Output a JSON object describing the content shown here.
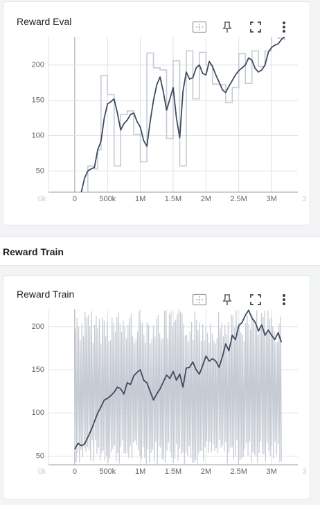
{
  "charts": [
    {
      "title": "Reward Eval"
    },
    {
      "title": "Reward Train"
    }
  ],
  "section": {
    "title": "Reward Train"
  },
  "toolbar_icons": [
    "fit-domain-icon",
    "pin-icon",
    "fullscreen-icon",
    "more-vert-icon"
  ],
  "colors": {
    "smoothed": "#3d4a60",
    "raw": "#c5cad3",
    "grid": "#e0e0e0"
  },
  "chart_data": [
    {
      "type": "line",
      "title": "Reward Eval",
      "xlim": [
        -400000,
        3400000
      ],
      "ylim": [
        20,
        240
      ],
      "x_ticks": [
        "0k",
        "0",
        "500k",
        "1M",
        "1.5M",
        "2M",
        "2.5M",
        "3M",
        "3"
      ],
      "y_ticks": [
        50,
        100,
        150,
        200
      ],
      "grid": true,
      "series": [
        {
          "role": "raw",
          "step": true,
          "x": [
            100000,
            200000,
            300000,
            350000,
            400000,
            500000,
            600000,
            700000,
            800000,
            900000,
            1000000,
            1100000,
            1200000,
            1300000,
            1400000,
            1500000,
            1600000,
            1700000,
            1800000,
            1900000,
            2000000,
            2100000,
            2200000,
            2300000,
            2400000,
            2500000,
            2600000,
            2700000,
            2800000,
            2900000,
            3000000,
            3100000,
            3200000
          ],
          "y": [
            20,
            57,
            53,
            80,
            185,
            158,
            57,
            130,
            135,
            102,
            63,
            217,
            196,
            193,
            96,
            206,
            57,
            220,
            152,
            218,
            200,
            173,
            172,
            147,
            168,
            216,
            174,
            220,
            198,
            220,
            250,
            238,
            235
          ]
        },
        {
          "role": "smoothed",
          "x": [
            100000,
            150000,
            200000,
            250000,
            300000,
            350000,
            400000,
            450000,
            500000,
            550000,
            600000,
            650000,
            700000,
            750000,
            800000,
            850000,
            900000,
            950000,
            1000000,
            1050000,
            1100000,
            1150000,
            1200000,
            1250000,
            1300000,
            1350000,
            1400000,
            1450000,
            1500000,
            1550000,
            1600000,
            1650000,
            1700000,
            1750000,
            1800000,
            1850000,
            1900000,
            1950000,
            2000000,
            2050000,
            2100000,
            2150000,
            2200000,
            2250000,
            2300000,
            2350000,
            2400000,
            2450000,
            2500000,
            2550000,
            2600000,
            2650000,
            2700000,
            2750000,
            2800000,
            2850000,
            2900000,
            2950000,
            3000000,
            3050000,
            3100000,
            3150000,
            3200000
          ],
          "y": [
            20,
            40,
            50,
            53,
            55,
            80,
            92,
            125,
            145,
            148,
            152,
            132,
            108,
            117,
            122,
            130,
            132,
            120,
            112,
            93,
            85,
            120,
            150,
            172,
            183,
            162,
            136,
            152,
            168,
            125,
            97,
            163,
            190,
            180,
            182,
            196,
            200,
            188,
            186,
            205,
            198,
            186,
            176,
            165,
            161,
            170,
            178,
            186,
            192,
            196,
            200,
            210,
            207,
            195,
            190,
            193,
            200,
            218,
            225,
            228,
            230,
            236,
            240
          ]
        }
      ]
    },
    {
      "type": "line",
      "title": "Reward Train",
      "xlim": [
        -400000,
        3400000
      ],
      "ylim": [
        40,
        220
      ],
      "x_ticks": [
        "0k",
        "0",
        "500k",
        "1M",
        "1.5M",
        "2M",
        "2.5M",
        "3M",
        "3"
      ],
      "y_ticks": [
        50,
        100,
        150,
        200
      ],
      "grid": true,
      "series": [
        {
          "role": "raw_band",
          "x_start": 0,
          "x_end": 3150000,
          "low": 40,
          "high": 220
        },
        {
          "role": "smoothed",
          "x": [
            0,
            50000,
            100000,
            150000,
            200000,
            250000,
            300000,
            350000,
            400000,
            450000,
            500000,
            550000,
            600000,
            650000,
            700000,
            750000,
            800000,
            850000,
            900000,
            950000,
            1000000,
            1050000,
            1100000,
            1150000,
            1200000,
            1250000,
            1300000,
            1350000,
            1400000,
            1450000,
            1500000,
            1550000,
            1600000,
            1650000,
            1700000,
            1750000,
            1800000,
            1850000,
            1900000,
            1950000,
            2000000,
            2050000,
            2100000,
            2150000,
            2200000,
            2250000,
            2300000,
            2350000,
            2400000,
            2450000,
            2500000,
            2550000,
            2600000,
            2650000,
            2700000,
            2750000,
            2800000,
            2850000,
            2900000,
            2950000,
            3000000,
            3050000,
            3100000,
            3150000
          ],
          "y": [
            58,
            65,
            62,
            64,
            72,
            80,
            90,
            100,
            107,
            115,
            117,
            120,
            124,
            130,
            128,
            122,
            135,
            133,
            143,
            147,
            150,
            138,
            135,
            125,
            115,
            122,
            128,
            136,
            144,
            140,
            148,
            138,
            145,
            130,
            152,
            153,
            159,
            150,
            145,
            155,
            166,
            160,
            163,
            160,
            153,
            165,
            180,
            172,
            190,
            185,
            201,
            205,
            213,
            219,
            210,
            205,
            195,
            202,
            190,
            196,
            190,
            185,
            193,
            182
          ]
        }
      ]
    }
  ]
}
